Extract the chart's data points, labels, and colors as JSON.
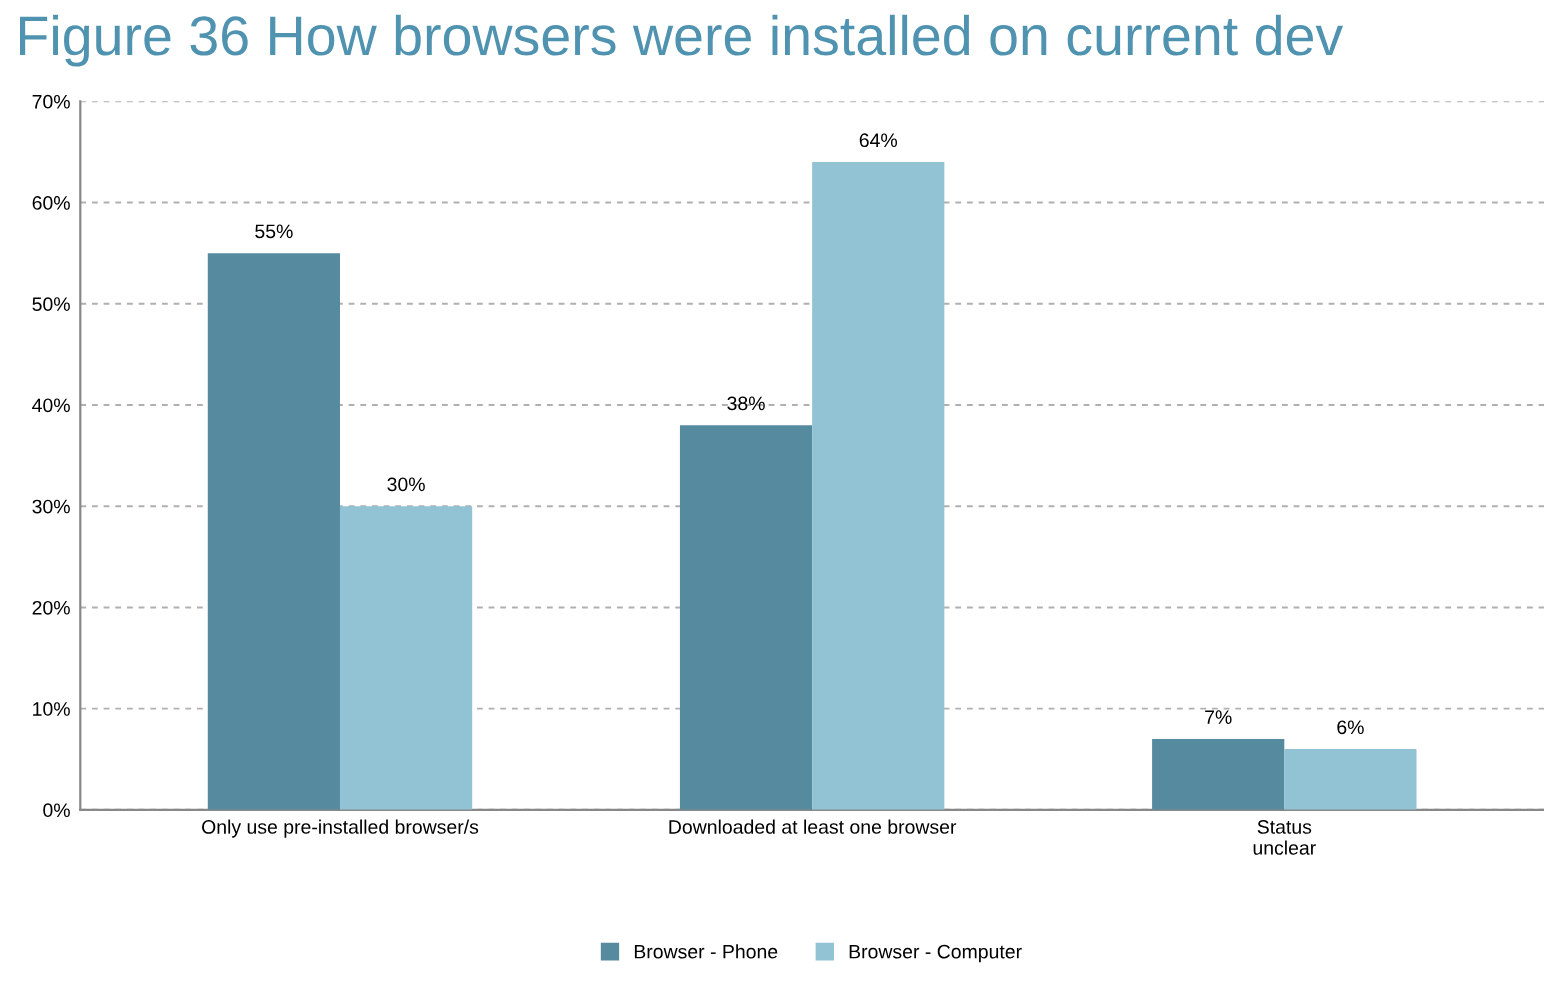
{
  "chart_data": {
    "type": "bar",
    "title": "Figure 36 How browsers were installed on current dev",
    "categories": [
      "Only use pre-installed browser/s",
      "Downloaded at least one browser",
      "Status\nunclear"
    ],
    "series": [
      {
        "name": "Browser - Phone",
        "color": "#568a9f",
        "values": [
          55,
          38,
          7
        ]
      },
      {
        "name": "Browser - Computer",
        "color": "#92c3d5",
        "values": [
          30,
          64,
          6
        ]
      }
    ],
    "ylim": [
      0,
      70
    ],
    "yticks": [
      {
        "value": 0,
        "label": "0%"
      },
      {
        "value": 10,
        "label": "10%"
      },
      {
        "value": 20,
        "label": "20%"
      },
      {
        "value": 30,
        "label": "30%"
      },
      {
        "value": 40,
        "label": "40%"
      },
      {
        "value": 50,
        "label": "50%"
      },
      {
        "value": 60,
        "label": "60%"
      },
      {
        "value": 70,
        "label": "70%"
      }
    ],
    "value_labels": [
      [
        "55%",
        "38%",
        "7%"
      ],
      [
        "30%",
        "64%",
        "6%"
      ]
    ],
    "grid": "y",
    "legend": "bottom"
  }
}
